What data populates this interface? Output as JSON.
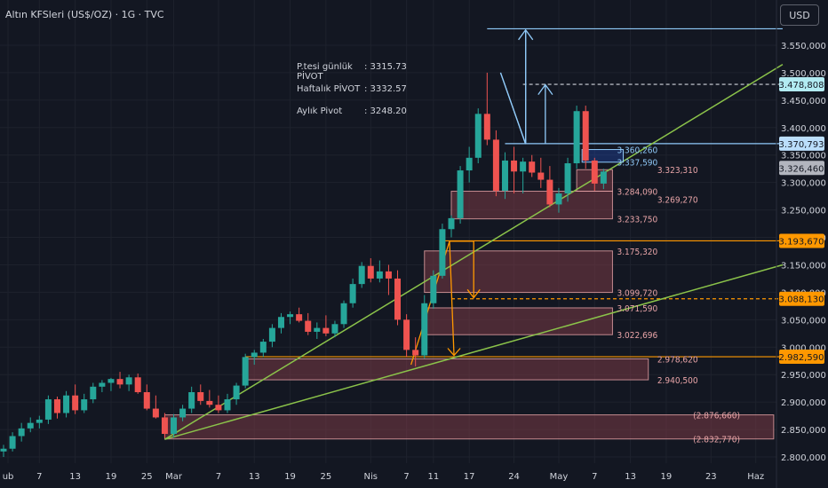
{
  "header": {
    "title": "Altın KFSleri (US$/OZ) · 1G · TVC",
    "currency": "USD"
  },
  "pivot_info": [
    {
      "label": "P.tesi günlük PİVOT",
      "value": ": 3315.73"
    },
    {
      "label": "Haftalık PİVOT",
      "value": ": 3332.57"
    },
    {
      "label": "Aylık Pivot",
      "value": ": 3248.20"
    }
  ],
  "colors": {
    "up": "#26a69a",
    "down": "#ef5350",
    "zone_fill": "#7a3a45",
    "zone_edge": "#e9a5a8",
    "trend_line": "#8bc34a",
    "orange": "#ff9800",
    "blue": "#90caf9",
    "grid": "#1e222d",
    "axis_text": "#d1d4dc"
  },
  "chart_data": {
    "type": "candlestick",
    "title": "Altın KFSleri (US$/OZ) · 1G · TVC",
    "xlabel": "",
    "ylabel": "",
    "ylim": [
      2790,
      3600
    ],
    "y_ticks": [
      "3.550,000",
      "3.500,000",
      "3.450,000",
      "3.400,000",
      "3.350,000",
      "3.300,000",
      "3.250,000",
      "3.200,000",
      "3.150,000",
      "3.100,000",
      "3.050,000",
      "3.000,000",
      "2.950,000",
      "2.900,000",
      "2.850,000",
      "2.800,000"
    ],
    "y_tick_values": [
      3550,
      3500,
      3450,
      3400,
      3350,
      3300,
      3250,
      3200,
      3150,
      3100,
      3050,
      3000,
      2950,
      2900,
      2850,
      2800
    ],
    "x_ticks": [
      {
        "label": "ub",
        "idx": 0.5
      },
      {
        "label": "7",
        "idx": 4
      },
      {
        "label": "13",
        "idx": 8
      },
      {
        "label": "19",
        "idx": 12
      },
      {
        "label": "25",
        "idx": 16
      },
      {
        "label": "Mar",
        "idx": 19
      },
      {
        "label": "7",
        "idx": 24
      },
      {
        "label": "13",
        "idx": 28
      },
      {
        "label": "19",
        "idx": 32
      },
      {
        "label": "25",
        "idx": 36
      },
      {
        "label": "Nis",
        "idx": 41
      },
      {
        "label": "7",
        "idx": 45
      },
      {
        "label": "11",
        "idx": 48
      },
      {
        "label": "17",
        "idx": 52
      },
      {
        "label": "24",
        "idx": 57
      },
      {
        "label": "May",
        "idx": 62
      },
      {
        "label": "7",
        "idx": 66
      },
      {
        "label": "13",
        "idx": 70
      },
      {
        "label": "19",
        "idx": 74
      },
      {
        "label": "23",
        "idx": 79
      },
      {
        "label": "Haz",
        "idx": 84
      }
    ],
    "candles": [
      {
        "o": 2810,
        "h": 2822,
        "l": 2800,
        "c": 2815
      },
      {
        "o": 2815,
        "h": 2845,
        "l": 2810,
        "c": 2838
      },
      {
        "o": 2838,
        "h": 2862,
        "l": 2828,
        "c": 2852
      },
      {
        "o": 2852,
        "h": 2872,
        "l": 2845,
        "c": 2862
      },
      {
        "o": 2862,
        "h": 2875,
        "l": 2852,
        "c": 2868
      },
      {
        "o": 2868,
        "h": 2912,
        "l": 2860,
        "c": 2905
      },
      {
        "o": 2905,
        "h": 2910,
        "l": 2870,
        "c": 2880
      },
      {
        "o": 2880,
        "h": 2920,
        "l": 2872,
        "c": 2912
      },
      {
        "o": 2912,
        "h": 2932,
        "l": 2878,
        "c": 2885
      },
      {
        "o": 2885,
        "h": 2915,
        "l": 2880,
        "c": 2905
      },
      {
        "o": 2905,
        "h": 2935,
        "l": 2898,
        "c": 2928
      },
      {
        "o": 2928,
        "h": 2940,
        "l": 2918,
        "c": 2935
      },
      {
        "o": 2935,
        "h": 2944,
        "l": 2920,
        "c": 2942
      },
      {
        "o": 2942,
        "h": 2955,
        "l": 2925,
        "c": 2932
      },
      {
        "o": 2932,
        "h": 2950,
        "l": 2920,
        "c": 2945
      },
      {
        "o": 2945,
        "h": 2952,
        "l": 2915,
        "c": 2918
      },
      {
        "o": 2918,
        "h": 2932,
        "l": 2885,
        "c": 2888
      },
      {
        "o": 2888,
        "h": 2912,
        "l": 2870,
        "c": 2872
      },
      {
        "o": 2872,
        "h": 2880,
        "l": 2835,
        "c": 2842
      },
      {
        "o": 2842,
        "h": 2878,
        "l": 2835,
        "c": 2872
      },
      {
        "o": 2872,
        "h": 2895,
        "l": 2865,
        "c": 2888
      },
      {
        "o": 2888,
        "h": 2928,
        "l": 2880,
        "c": 2918
      },
      {
        "o": 2918,
        "h": 2932,
        "l": 2895,
        "c": 2902
      },
      {
        "o": 2902,
        "h": 2922,
        "l": 2890,
        "c": 2895
      },
      {
        "o": 2895,
        "h": 2912,
        "l": 2880,
        "c": 2885
      },
      {
        "o": 2885,
        "h": 2915,
        "l": 2880,
        "c": 2905
      },
      {
        "o": 2905,
        "h": 2935,
        "l": 2895,
        "c": 2930
      },
      {
        "o": 2930,
        "h": 2988,
        "l": 2925,
        "c": 2982
      },
      {
        "o": 2982,
        "h": 2995,
        "l": 2968,
        "c": 2990
      },
      {
        "o": 2990,
        "h": 3015,
        "l": 2982,
        "c": 3010
      },
      {
        "o": 3010,
        "h": 3042,
        "l": 3000,
        "c": 3035
      },
      {
        "o": 3035,
        "h": 3062,
        "l": 3025,
        "c": 3055
      },
      {
        "o": 3055,
        "h": 3065,
        "l": 3042,
        "c": 3060
      },
      {
        "o": 3060,
        "h": 3072,
        "l": 3045,
        "c": 3048
      },
      {
        "o": 3048,
        "h": 3062,
        "l": 3022,
        "c": 3028
      },
      {
        "o": 3028,
        "h": 3045,
        "l": 3015,
        "c": 3035
      },
      {
        "o": 3035,
        "h": 3058,
        "l": 3020,
        "c": 3025
      },
      {
        "o": 3025,
        "h": 3048,
        "l": 3018,
        "c": 3042
      },
      {
        "o": 3042,
        "h": 3085,
        "l": 3035,
        "c": 3080
      },
      {
        "o": 3080,
        "h": 3125,
        "l": 3072,
        "c": 3115
      },
      {
        "o": 3115,
        "h": 3155,
        "l": 3108,
        "c": 3148
      },
      {
        "o": 3148,
        "h": 3162,
        "l": 3118,
        "c": 3125
      },
      {
        "o": 3125,
        "h": 3158,
        "l": 3118,
        "c": 3138
      },
      {
        "o": 3138,
        "h": 3150,
        "l": 3095,
        "c": 3125
      },
      {
        "o": 3125,
        "h": 3140,
        "l": 3040,
        "c": 3050
      },
      {
        "o": 3050,
        "h": 3060,
        "l": 2982,
        "c": 2995
      },
      {
        "o": 2995,
        "h": 3018,
        "l": 2965,
        "c": 2985
      },
      {
        "o": 2985,
        "h": 3095,
        "l": 2980,
        "c": 3080
      },
      {
        "o": 3080,
        "h": 3140,
        "l": 3070,
        "c": 3130
      },
      {
        "o": 3130,
        "h": 3225,
        "l": 3125,
        "c": 3215
      },
      {
        "o": 3215,
        "h": 3240,
        "l": 3200,
        "c": 3235
      },
      {
        "o": 3235,
        "h": 3330,
        "l": 3225,
        "c": 3322
      },
      {
        "o": 3322,
        "h": 3365,
        "l": 3300,
        "c": 3345
      },
      {
        "o": 3345,
        "h": 3435,
        "l": 3335,
        "c": 3425
      },
      {
        "o": 3425,
        "h": 3500,
        "l": 3368,
        "c": 3378
      },
      {
        "o": 3378,
        "h": 3395,
        "l": 3275,
        "c": 3285
      },
      {
        "o": 3285,
        "h": 3355,
        "l": 3270,
        "c": 3340
      },
      {
        "o": 3340,
        "h": 3365,
        "l": 3280,
        "c": 3320
      },
      {
        "o": 3320,
        "h": 3345,
        "l": 3280,
        "c": 3338
      },
      {
        "o": 3338,
        "h": 3350,
        "l": 3310,
        "c": 3318
      },
      {
        "o": 3318,
        "h": 3345,
        "l": 3290,
        "c": 3305
      },
      {
        "o": 3305,
        "h": 3330,
        "l": 3255,
        "c": 3260
      },
      {
        "o": 3260,
        "h": 3290,
        "l": 3245,
        "c": 3280
      },
      {
        "o": 3280,
        "h": 3345,
        "l": 3265,
        "c": 3335
      },
      {
        "o": 3335,
        "h": 3440,
        "l": 3325,
        "c": 3430
      },
      {
        "o": 3430,
        "h": 3440,
        "l": 3325,
        "c": 3340
      },
      {
        "o": 3340,
        "h": 3345,
        "l": 3285,
        "c": 3298
      },
      {
        "o": 3298,
        "h": 3325,
        "l": 3288,
        "c": 3320
      }
    ],
    "zones": [
      {
        "top": 3323.31,
        "bottom": 3284.09,
        "x0": 64,
        "x1": 68
      },
      {
        "top": 3284.09,
        "bottom": 3233.75,
        "x0": 50,
        "x1": 68
      },
      {
        "top": 3175.32,
        "bottom": 3099.72,
        "x0": 47,
        "x1": 68
      },
      {
        "top": 3071.59,
        "bottom": 3022.696,
        "x0": 47,
        "x1": 68
      },
      {
        "top": 2978.62,
        "bottom": 2940.5,
        "x0": 27,
        "x1": 72
      },
      {
        "top": 2876.66,
        "bottom": 2832.77,
        "x0": 18,
        "x1": 86
      }
    ],
    "level_labels": [
      {
        "text": "3.360,260",
        "value": 3360.26,
        "x": 68.5,
        "color": "blue"
      },
      {
        "text": "3.337,590",
        "value": 3337.59,
        "x": 68.5,
        "color": "blue"
      },
      {
        "text": "3.323,310",
        "value": 3323.31,
        "x": 73,
        "color": "zone_edge"
      },
      {
        "text": "3.284,090",
        "value": 3284.09,
        "x": 68.5,
        "color": "zone_edge"
      },
      {
        "text": "3.269,270",
        "value": 3269.27,
        "x": 73,
        "color": "zone_edge"
      },
      {
        "text": "3.233,750",
        "value": 3233.75,
        "x": 68.5,
        "color": "zone_edge"
      },
      {
        "text": "3.175,320",
        "value": 3175.32,
        "x": 68.5,
        "color": "zone_edge"
      },
      {
        "text": "3.099,720",
        "value": 3099.72,
        "x": 68.5,
        "color": "zone_edge"
      },
      {
        "text": "3.071,590",
        "value": 3071.59,
        "x": 68.5,
        "color": "zone_edge"
      },
      {
        "text": "3.022,696",
        "value": 3022.696,
        "x": 68.5,
        "color": "zone_edge"
      },
      {
        "text": "2.978,620",
        "value": 2978.62,
        "x": 73,
        "color": "zone_edge"
      },
      {
        "text": "2.940,500",
        "value": 2940.5,
        "x": 73,
        "color": "zone_edge"
      },
      {
        "text": "(2.876,660)",
        "value": 2876.66,
        "x": 77,
        "color": "zone_edge"
      },
      {
        "text": "(2.832,770)",
        "value": 2832.77,
        "x": 77,
        "color": "zone_edge"
      }
    ],
    "horizontal_lines": [
      {
        "value": 3580,
        "x0": 54,
        "x1": 87,
        "style": "solid",
        "color": "blue"
      },
      {
        "value": 3478.808,
        "x0": 58,
        "x1": 87,
        "style": "dashed",
        "color": "axis_text"
      },
      {
        "value": 3370.793,
        "x0": 56,
        "x1": 87,
        "style": "solid",
        "color": "blue"
      },
      {
        "value": 3193.67,
        "x0": 49,
        "x1": 87,
        "style": "solid",
        "color": "orange"
      },
      {
        "value": 3088.13,
        "x0": 50,
        "x1": 87,
        "style": "dashed",
        "color": "orange"
      },
      {
        "value": 2982.59,
        "x0": 27,
        "x1": 87,
        "style": "solid",
        "color": "orange"
      }
    ],
    "trend_lines": [
      {
        "x0": 18,
        "y0": 2832,
        "x1": 87,
        "y1": 3515
      },
      {
        "x0": 18,
        "y0": 2832,
        "x1": 87,
        "y1": 3150
      }
    ],
    "price_tags": [
      {
        "text": "3.478,808",
        "value": 3478.808,
        "bg": "#b2ebf2",
        "fg": "#131722"
      },
      {
        "text": "3.370,793",
        "value": 3370.793,
        "bg": "#bbdefb",
        "fg": "#131722"
      },
      {
        "text": "3.326,460",
        "value": 3326.46,
        "bg": "#b2b5be",
        "fg": "#131722"
      },
      {
        "text": "3.193,670",
        "value": 3193.67,
        "bg": "#ff9800",
        "fg": "#131722"
      },
      {
        "text": "3.088,130",
        "value": 3088.13,
        "bg": "#ff9800",
        "fg": "#131722"
      },
      {
        "text": "2.982,590",
        "value": 2982.59,
        "bg": "#ff9800",
        "fg": "#131722"
      }
    ]
  }
}
